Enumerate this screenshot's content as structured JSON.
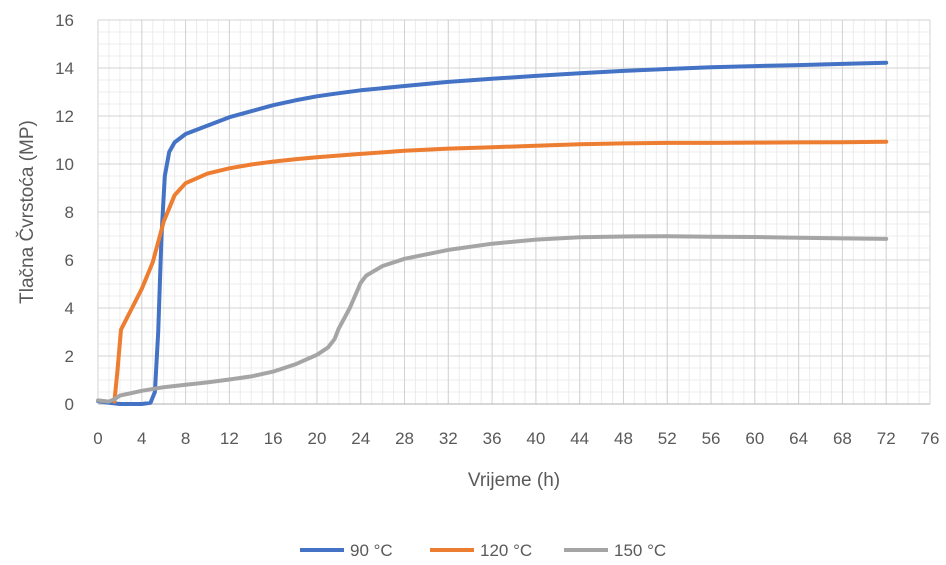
{
  "chart_data": {
    "type": "line",
    "title": "",
    "xlabel": "Vrijeme (h)",
    "ylabel": "Tlačna Čvrstoća (MP)",
    "xlim": [
      0,
      76
    ],
    "ylim": [
      0,
      16
    ],
    "xticks": [
      0,
      4,
      8,
      12,
      16,
      20,
      24,
      28,
      32,
      36,
      40,
      44,
      48,
      52,
      56,
      60,
      64,
      68,
      72,
      76
    ],
    "yticks": [
      0,
      2,
      4,
      6,
      8,
      10,
      12,
      14,
      16
    ],
    "grid": true,
    "legend_position": "bottom",
    "series": [
      {
        "name": "90 °C",
        "color": "#4472C4",
        "points": [
          [
            0,
            0.12
          ],
          [
            1,
            0.05
          ],
          [
            2,
            0
          ],
          [
            4,
            0
          ],
          [
            4.8,
            0.05
          ],
          [
            5.2,
            0.5
          ],
          [
            5.5,
            3
          ],
          [
            5.8,
            7
          ],
          [
            6.1,
            9.5
          ],
          [
            6.5,
            10.5
          ],
          [
            7,
            10.9
          ],
          [
            8,
            11.25
          ],
          [
            10,
            11.6
          ],
          [
            12,
            11.95
          ],
          [
            14,
            12.2
          ],
          [
            16,
            12.45
          ],
          [
            18,
            12.65
          ],
          [
            20,
            12.82
          ],
          [
            22,
            12.95
          ],
          [
            24,
            13.07
          ],
          [
            28,
            13.25
          ],
          [
            32,
            13.42
          ],
          [
            36,
            13.55
          ],
          [
            40,
            13.67
          ],
          [
            44,
            13.78
          ],
          [
            48,
            13.88
          ],
          [
            52,
            13.96
          ],
          [
            56,
            14.03
          ],
          [
            60,
            14.08
          ],
          [
            64,
            14.12
          ],
          [
            68,
            14.17
          ],
          [
            72,
            14.22
          ]
        ]
      },
      {
        "name": "120 °C",
        "color": "#ED7D31",
        "points": [
          [
            1.5,
            0.1
          ],
          [
            1.8,
            1.5
          ],
          [
            2.1,
            3.1
          ],
          [
            3,
            3.9
          ],
          [
            4,
            4.8
          ],
          [
            5,
            5.9
          ],
          [
            6,
            7.6
          ],
          [
            7,
            8.7
          ],
          [
            8,
            9.2
          ],
          [
            10,
            9.6
          ],
          [
            12,
            9.82
          ],
          [
            14,
            9.98
          ],
          [
            16,
            10.1
          ],
          [
            18,
            10.2
          ],
          [
            20,
            10.28
          ],
          [
            24,
            10.42
          ],
          [
            28,
            10.55
          ],
          [
            32,
            10.64
          ],
          [
            36,
            10.7
          ],
          [
            40,
            10.76
          ],
          [
            44,
            10.82
          ],
          [
            48,
            10.86
          ],
          [
            52,
            10.88
          ],
          [
            56,
            10.88
          ],
          [
            60,
            10.89
          ],
          [
            64,
            10.9
          ],
          [
            68,
            10.91
          ],
          [
            72,
            10.93
          ]
        ]
      },
      {
        "name": "150 °C",
        "color": "#A5A5A5",
        "points": [
          [
            0,
            0.15
          ],
          [
            1,
            0.1
          ],
          [
            1.5,
            0.2
          ],
          [
            2,
            0.35
          ],
          [
            4,
            0.55
          ],
          [
            6,
            0.7
          ],
          [
            8,
            0.8
          ],
          [
            10,
            0.9
          ],
          [
            12,
            1.02
          ],
          [
            14,
            1.15
          ],
          [
            16,
            1.35
          ],
          [
            18,
            1.65
          ],
          [
            20,
            2.05
          ],
          [
            21,
            2.35
          ],
          [
            21.6,
            2.7
          ],
          [
            22,
            3.15
          ],
          [
            23,
            4.0
          ],
          [
            24,
            5.05
          ],
          [
            24.5,
            5.35
          ],
          [
            26,
            5.75
          ],
          [
            28,
            6.05
          ],
          [
            32,
            6.42
          ],
          [
            36,
            6.68
          ],
          [
            40,
            6.85
          ],
          [
            44,
            6.95
          ],
          [
            48,
            6.98
          ],
          [
            52,
            6.99
          ],
          [
            56,
            6.97
          ],
          [
            60,
            6.96
          ],
          [
            64,
            6.93
          ],
          [
            68,
            6.9
          ],
          [
            72,
            6.88
          ]
        ]
      }
    ]
  }
}
